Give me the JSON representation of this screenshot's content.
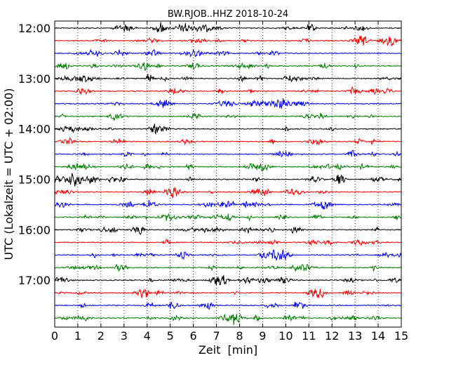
{
  "chart_data": {
    "type": "line",
    "title": "BW.RJOB..HHZ 2018-10-24",
    "xlabel": "Zeit  [min]",
    "ylabel": "UTC (Lokalzeit = UTC + 02:00)",
    "xlim": [
      0,
      15
    ],
    "x_ticks": [
      0,
      1,
      2,
      3,
      4,
      5,
      6,
      7,
      8,
      9,
      10,
      11,
      12,
      13,
      14,
      15
    ],
    "x_tick_labels": [
      "0",
      "1",
      "2",
      "3",
      "4",
      "5",
      "6",
      "7",
      "8",
      "9",
      "10",
      "11",
      "12",
      "13",
      "14",
      "15"
    ],
    "y_ticks": [
      {
        "label": "12:00",
        "row": 0
      },
      {
        "label": "13:00",
        "row": 4
      },
      {
        "label": "14:00",
        "row": 8
      },
      {
        "label": "15:00",
        "row": 12
      },
      {
        "label": "16:00",
        "row": 16
      },
      {
        "label": "17:00",
        "row": 20
      }
    ],
    "row_interval_min": 15,
    "row_count": 24,
    "row_start_times": [
      "12:00",
      "12:15",
      "12:30",
      "12:45",
      "13:00",
      "13:15",
      "13:30",
      "13:45",
      "14:00",
      "14:15",
      "14:30",
      "14:45",
      "15:00",
      "15:15",
      "15:30",
      "15:45",
      "16:00",
      "16:15",
      "16:30",
      "16:45",
      "17:00",
      "17:15",
      "17:30",
      "17:45"
    ],
    "color_cycle": [
      "#000000",
      "#ff0000",
      "#0000ff",
      "#007f00"
    ],
    "grid": "vertical dotted at every minute",
    "legend": "none"
  }
}
